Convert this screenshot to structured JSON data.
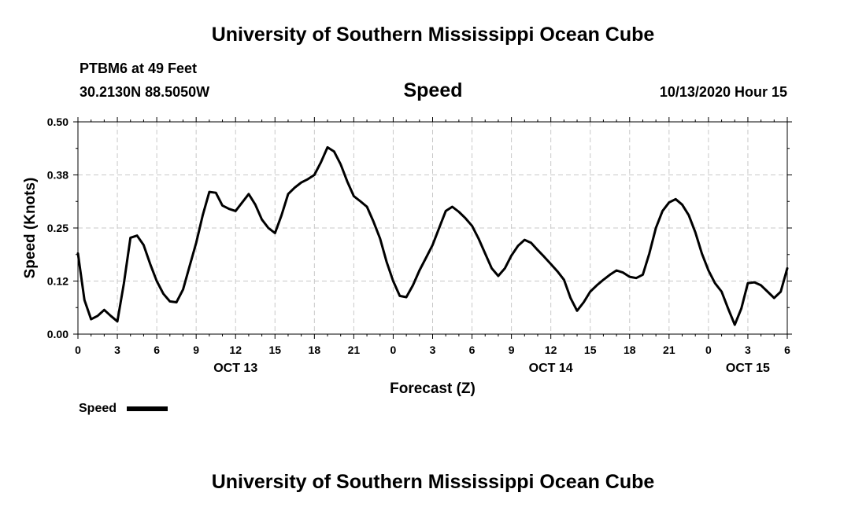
{
  "header": {
    "title": "University of Southern Mississippi Ocean Cube",
    "station": "PTBM6 at 49 Feet",
    "coords": "30.2130N 88.5050W",
    "chart_title": "Speed",
    "datetime": "10/13/2020 Hour 15"
  },
  "footer": {
    "title": "University of Southern Mississippi Ocean Cube"
  },
  "colors": {
    "line": "#000000",
    "grid": "#c8c8c8",
    "axis": "#000000"
  },
  "chart_data": {
    "type": "line",
    "title": "Speed",
    "xlabel": "Forecast (Z)",
    "ylabel": "Speed (Knots)",
    "ylim": [
      0,
      0.5
    ],
    "xlim": [
      0,
      54
    ],
    "grid": true,
    "legend_position": "bottom-left",
    "yticks": [
      0,
      0.125,
      0.25,
      0.375,
      0.5
    ],
    "ytick_labels": [
      "0.00",
      "0.12",
      "0.25",
      "0.38",
      "0.50"
    ],
    "xticks": [
      0,
      3,
      6,
      9,
      12,
      15,
      18,
      21,
      24,
      27,
      30,
      33,
      36,
      39,
      42,
      45,
      48,
      51,
      54
    ],
    "xtick_labels": [
      "0",
      "3",
      "6",
      "9",
      "12",
      "15",
      "18",
      "21",
      "0",
      "3",
      "6",
      "9",
      "12",
      "15",
      "18",
      "21",
      "0",
      "3",
      "6"
    ],
    "date_labels": [
      {
        "x": 12,
        "label": "OCT 13"
      },
      {
        "x": 36,
        "label": "OCT 14"
      },
      {
        "x": 51,
        "label": "OCT 15"
      }
    ],
    "series": [
      {
        "name": "Speed",
        "x": [
          0,
          0.5,
          1,
          1.5,
          2,
          2.5,
          3,
          3.5,
          4,
          4.5,
          5,
          5.5,
          6,
          6.5,
          7,
          7.5,
          8,
          8.5,
          9,
          9.5,
          10,
          10.5,
          11,
          11.5,
          12,
          12.5,
          13,
          13.5,
          14,
          14.5,
          15,
          15.5,
          16,
          16.5,
          17,
          17.5,
          18,
          18.5,
          19,
          19.5,
          20,
          20.5,
          21,
          21.5,
          22,
          22.5,
          23,
          23.5,
          24,
          24.5,
          25,
          25.5,
          26,
          26.5,
          27,
          27.5,
          28,
          28.5,
          29,
          29.5,
          30,
          30.5,
          31,
          31.5,
          32,
          32.5,
          33,
          33.5,
          34,
          34.5,
          35,
          35.5,
          36,
          36.5,
          37,
          37.5,
          38,
          38.5,
          39,
          39.5,
          40,
          40.5,
          41,
          41.5,
          42,
          42.5,
          43,
          43.5,
          44,
          44.5,
          45,
          45.5,
          46,
          46.5,
          47,
          47.5,
          48,
          48.5,
          49,
          49.5,
          50,
          50.5,
          51,
          51.5,
          52,
          52.5,
          53,
          53.5,
          54
        ],
        "y": [
          0.19,
          0.08,
          0.035,
          0.043,
          0.057,
          0.043,
          0.03,
          0.12,
          0.227,
          0.232,
          0.21,
          0.165,
          0.125,
          0.095,
          0.077,
          0.075,
          0.105,
          0.16,
          0.215,
          0.28,
          0.335,
          0.333,
          0.303,
          0.295,
          0.29,
          0.31,
          0.33,
          0.305,
          0.27,
          0.25,
          0.238,
          0.28,
          0.33,
          0.345,
          0.357,
          0.365,
          0.375,
          0.405,
          0.44,
          0.43,
          0.4,
          0.36,
          0.325,
          0.313,
          0.3,
          0.265,
          0.225,
          0.17,
          0.125,
          0.09,
          0.087,
          0.115,
          0.15,
          0.18,
          0.21,
          0.25,
          0.29,
          0.3,
          0.288,
          0.273,
          0.255,
          0.225,
          0.19,
          0.155,
          0.137,
          0.155,
          0.185,
          0.208,
          0.222,
          0.215,
          0.198,
          0.182,
          0.165,
          0.148,
          0.128,
          0.085,
          0.055,
          0.075,
          0.1,
          0.115,
          0.128,
          0.14,
          0.15,
          0.145,
          0.135,
          0.132,
          0.14,
          0.19,
          0.25,
          0.29,
          0.31,
          0.318,
          0.305,
          0.28,
          0.24,
          0.19,
          0.15,
          0.12,
          0.1,
          0.06,
          0.022,
          0.06,
          0.12,
          0.122,
          0.115,
          0.1,
          0.085,
          0.1,
          0.155
        ]
      }
    ]
  }
}
